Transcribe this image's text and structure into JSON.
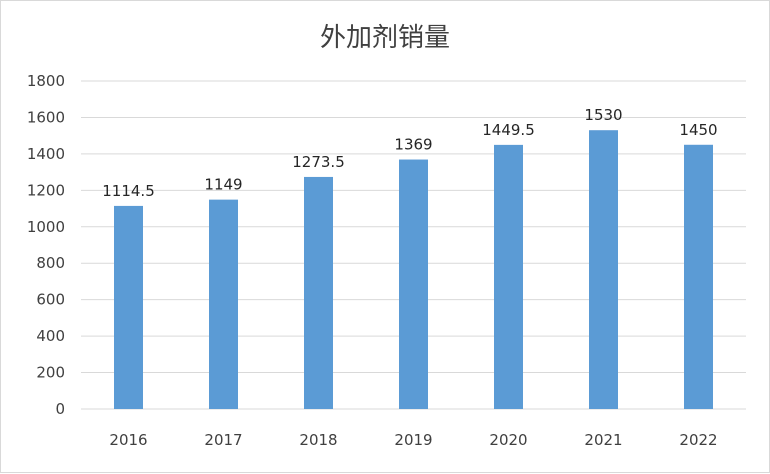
{
  "chart_data": {
    "type": "bar",
    "title": "外加剂销量",
    "categories": [
      "2016",
      "2017",
      "2018",
      "2019",
      "2020",
      "2021",
      "2022"
    ],
    "values": [
      1114.5,
      1149,
      1273.5,
      1369,
      1449.5,
      1530,
      1450
    ],
    "data_labels": [
      "1114.5",
      "1149",
      "1273.5",
      "1369",
      "1449.5",
      "1530",
      "1450"
    ],
    "xlabel": "",
    "ylabel": "",
    "ylim": [
      0,
      1800
    ],
    "yticks": [
      0,
      200,
      400,
      600,
      800,
      1000,
      1200,
      1400,
      1600,
      1800
    ],
    "grid": true,
    "legend": "none",
    "bar_color": "#5b9bd5",
    "grid_color": "#d9d9d9"
  }
}
